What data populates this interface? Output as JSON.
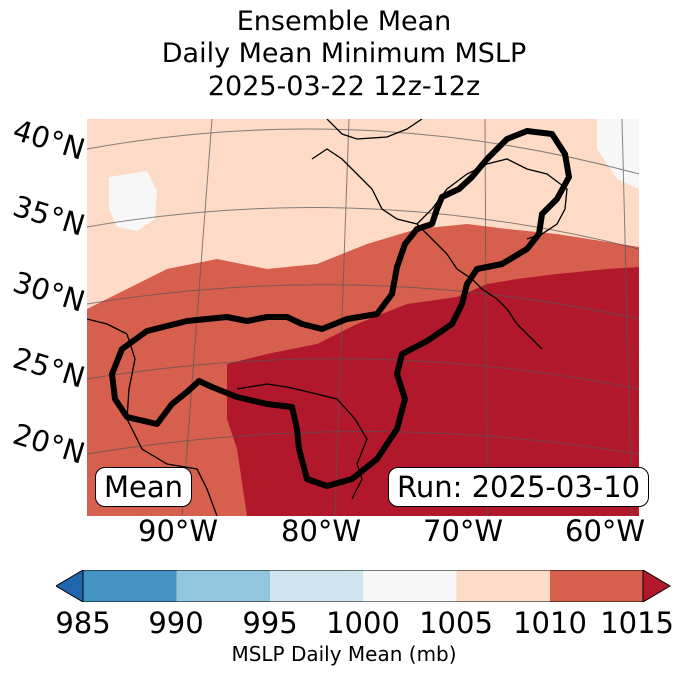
{
  "title": {
    "line1": "Ensemble Mean",
    "line2": "Daily Mean Minimum MSLP",
    "line3": "2025-03-22 12z-12z"
  },
  "map": {
    "lat_labels": [
      "40°N",
      "35°N",
      "30°N",
      "25°N",
      "20°N"
    ],
    "lon_labels": [
      "90°W",
      "80°W",
      "70°W",
      "60°W"
    ],
    "mean_box": "Mean",
    "run_box": "Run: 2025-03-10",
    "region_colors": {
      "c1000": "#f7f7f7",
      "c1005": "#fddbc7",
      "c1010": "#d6604d",
      "c1015": "#b2182b"
    },
    "contour_color": "#000000"
  },
  "colorbar": {
    "ticks": [
      "985",
      "990",
      "995",
      "1000",
      "1005",
      "1010",
      "1015"
    ],
    "label": "MSLP Daily Mean (mb)",
    "colors": [
      "#2166ac",
      "#4393c3",
      "#92c5de",
      "#d1e5f0",
      "#f7f7f7",
      "#fddbc7",
      "#d6604d",
      "#b2182b"
    ]
  }
}
